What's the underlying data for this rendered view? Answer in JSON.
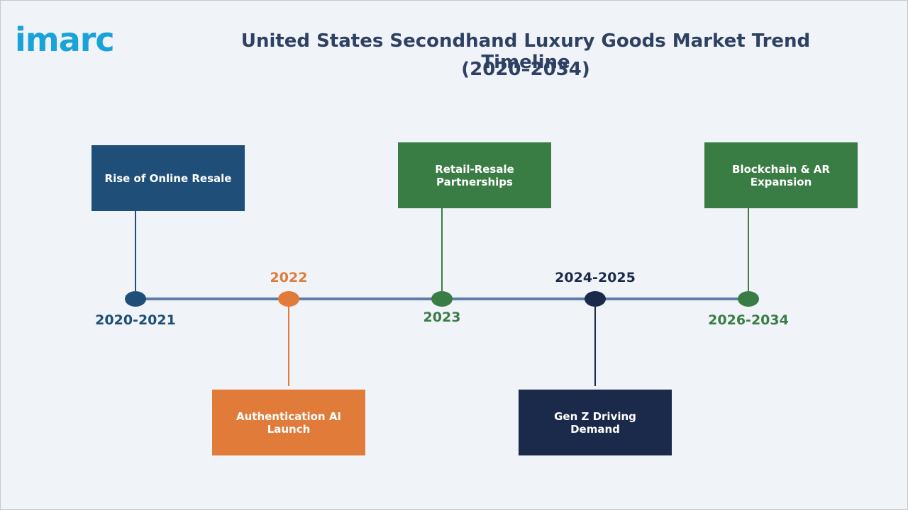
{
  "header": {
    "logo": "imarc",
    "title": "United States Secondhand Luxury Goods Market Trend Timeline",
    "subtitle": "(2020–2034)"
  },
  "nodes": [
    {
      "period": "2020-2021",
      "label": "Rise of Online Resale"
    },
    {
      "period": "2022",
      "label": "Authentication AI Launch"
    },
    {
      "period": "2023",
      "label": "Retail-Resale Partnerships"
    },
    {
      "period": "2024-2025",
      "label": "Gen Z Driving Demand"
    },
    {
      "period": "2026-2034",
      "label": "Blockchain & AR Expansion"
    }
  ]
}
